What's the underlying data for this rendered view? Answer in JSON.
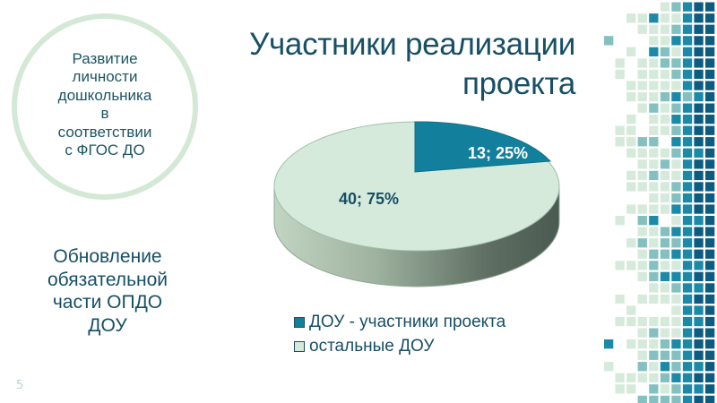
{
  "slide": {
    "title": "Участники реализации\nпроекта",
    "circle_text": "Развитие\nличности\nдошкольника\nв\nсоответствии\nс ФГОС ДО",
    "left_text": "Обновление\nобязательной\nчасти ОПДО\nДОУ",
    "page_number": "5"
  },
  "colors": {
    "text_primary": "#174f66",
    "participants": "#12809c",
    "others": "#d6eadb",
    "side": "#8a9c8c",
    "mosaic": [
      "#ffffff",
      "#d6eadb",
      "#85c0c0",
      "#1b8aa8",
      "#0d5c80"
    ]
  },
  "chart_data": {
    "type": "pie",
    "style": "3d",
    "title": "Участники реализации проекта",
    "categories": [
      "ДОУ - участники проекта",
      "остальные ДОУ"
    ],
    "values": [
      13,
      40
    ],
    "percentages": [
      25,
      75
    ],
    "data_labels": [
      "13; 25%",
      "40; 75%"
    ],
    "colors": [
      "#12809c",
      "#d6eadb"
    ],
    "legend_position": "bottom"
  },
  "legend": [
    {
      "label": "ДОУ - участники проекта",
      "color": "#12809c"
    },
    {
      "label": "остальные ДОУ",
      "color": "#d6eadb"
    }
  ],
  "mosaic_rows": [
    "0000012344",
    "0011311344",
    "0001112344",
    "2000113344",
    "0010321344",
    "0101122344",
    "0101112344",
    "0011111344",
    "0011123234",
    "0001212344",
    "0010113344",
    "0110112344",
    "0112203344",
    "0011112334",
    "0001121344",
    "0011211344",
    "0011112344",
    "0000112344",
    "0011113344",
    "0102301334",
    "0001123344",
    "0012122344",
    "0001223344",
    "0111211334",
    "0001233344",
    "0000112334",
    "0101111344",
    "0010001334",
    "0111111334",
    "0001211344",
    "3011123344",
    "0001222344",
    "1002132334",
    "0111123344",
    "0110212334",
    "0002222344"
  ]
}
